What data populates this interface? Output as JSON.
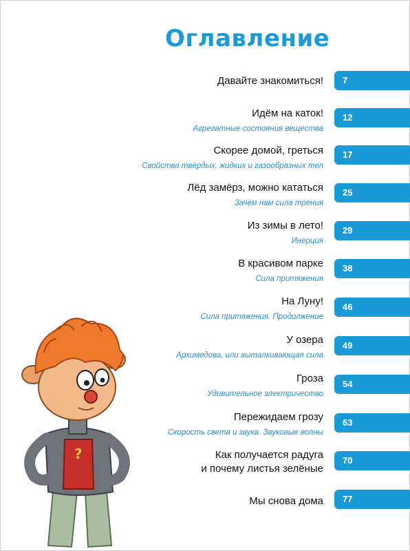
{
  "title": "Оглавление",
  "entries": [
    {
      "title": "Давайте знакомиться!",
      "subtitle": "",
      "page": "7"
    },
    {
      "title": "Идём на каток!",
      "subtitle": "Агрегатные состояния вещества",
      "page": "12"
    },
    {
      "title": "Скорее домой, греться",
      "subtitle": "Свойства твёрдых, жидких и газообразных тел",
      "page": "17"
    },
    {
      "title": "Лёд замёрз, можно кататься",
      "subtitle": "Зачем нам сила трения",
      "page": "25"
    },
    {
      "title": "Из зимы в лето!",
      "subtitle": "Инерция",
      "page": "29"
    },
    {
      "title": "В красивом парке",
      "subtitle": "Сила притяжения",
      "page": "38"
    },
    {
      "title": "На Луну!",
      "subtitle": "Сила притяжения. Продолжение",
      "page": "46"
    },
    {
      "title": "У озера",
      "subtitle": "Архимедова, или выталкивающая сила",
      "page": "49"
    },
    {
      "title": "Гроза",
      "subtitle": "Удивительное электричество",
      "page": "54"
    },
    {
      "title": "Пережидаем грозу",
      "subtitle": "Скорость света и звука. Звуковые волны",
      "page": "63"
    },
    {
      "title": "Как получается радуга",
      "title_line2": "и почему листья зелёные",
      "subtitle": "",
      "page": "70"
    },
    {
      "title": "Мы снова дома",
      "subtitle": "",
      "page": "77"
    }
  ],
  "colors": {
    "accent": "#1a9ad6",
    "subtitle": "#2a8fcf",
    "text": "#111111"
  },
  "illustration": "cartoon-boy-character"
}
